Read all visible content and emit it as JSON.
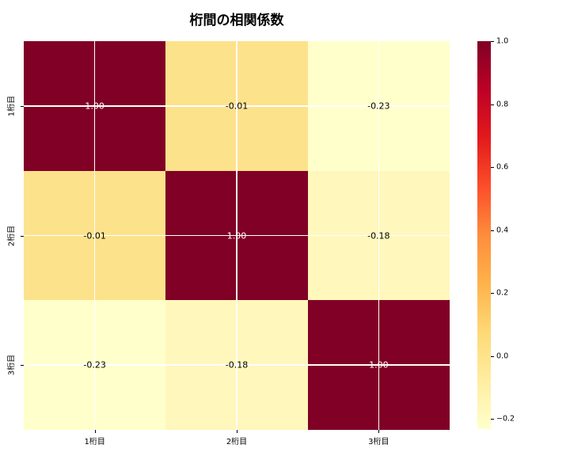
{
  "title": "桁間の相関係数",
  "chart_data": {
    "type": "heatmap",
    "title": "桁間の相関係数",
    "x_categories": [
      "1桁目",
      "2桁目",
      "3桁目"
    ],
    "y_categories": [
      "1桁目",
      "2桁目",
      "3桁目"
    ],
    "values": [
      [
        1.0,
        -0.01,
        -0.23
      ],
      [
        -0.01,
        1.0,
        -0.18
      ],
      [
        -0.23,
        -0.18,
        1.0
      ]
    ],
    "cell_labels": [
      [
        "1.00",
        "-0.01",
        "-0.23"
      ],
      [
        "-0.01",
        "1.00",
        "-0.18"
      ],
      [
        "-0.23",
        "-0.18",
        "1.00"
      ]
    ],
    "cell_colors": [
      [
        "#800026",
        "#fde28c",
        "#ffffcc"
      ],
      [
        "#fde28c",
        "#800026",
        "#fff7bc"
      ],
      [
        "#ffffcc",
        "#fff7bc",
        "#800026"
      ]
    ],
    "cell_text_colors": [
      [
        "#ffffff",
        "#000000",
        "#000000"
      ],
      [
        "#000000",
        "#ffffff",
        "#000000"
      ],
      [
        "#000000",
        "#000000",
        "#ffffff"
      ]
    ],
    "colormap": "YlOrRd",
    "colormap_stops_low_to_high": [
      "#ffffcc",
      "#ffeda0",
      "#fed976",
      "#feb24c",
      "#fd8d3c",
      "#fc4e2a",
      "#e31a1c",
      "#bd0026",
      "#800026"
    ],
    "vmin": -0.2316,
    "vmax": 1.0,
    "grid": true,
    "gridline_color": "#ffffff",
    "legend_position": "right-colorbar",
    "colorbar_ticks": [
      {
        "label": "1.0",
        "value": 1.0
      },
      {
        "label": "0.8",
        "value": 0.8
      },
      {
        "label": "0.6",
        "value": 0.6
      },
      {
        "label": "0.4",
        "value": 0.4
      },
      {
        "label": "0.2",
        "value": 0.2
      },
      {
        "label": "0.0",
        "value": 0.0
      },
      {
        "label": "−0.2",
        "value": -0.2
      }
    ]
  }
}
